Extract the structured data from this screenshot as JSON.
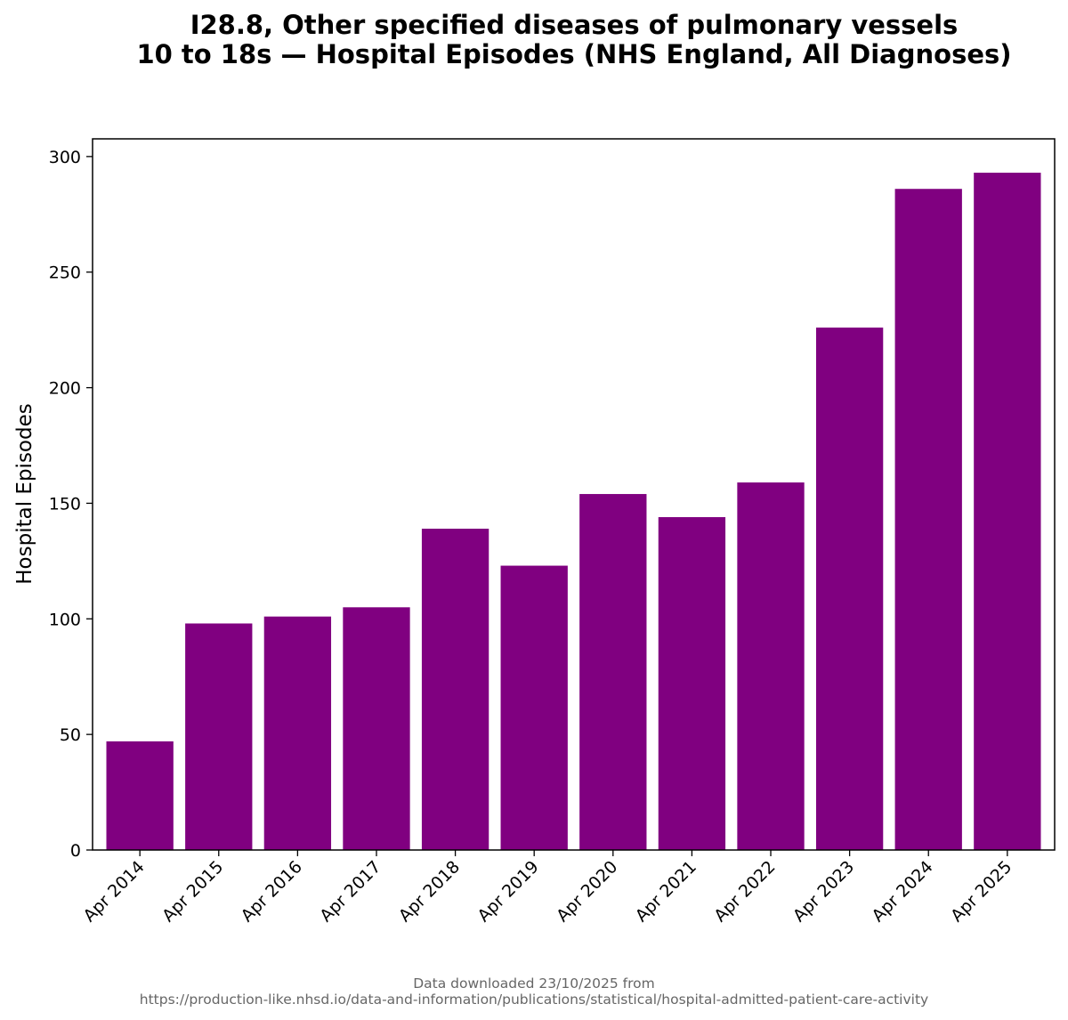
{
  "chart_data": {
    "type": "bar",
    "title_line1": "I28.8, Other specified diseases of pulmonary vessels",
    "title_line2": "10 to 18s — Hospital Episodes (NHS England, All Diagnoses)",
    "xlabel": "",
    "ylabel": "Hospital Episodes",
    "categories": [
      "Apr 2014",
      "Apr 2015",
      "Apr 2016",
      "Apr 2017",
      "Apr 2018",
      "Apr 2019",
      "Apr 2020",
      "Apr 2021",
      "Apr 2022",
      "Apr 2023",
      "Apr 2024",
      "Apr 2025"
    ],
    "values": [
      47,
      98,
      101,
      105,
      139,
      123,
      154,
      144,
      159,
      226,
      286,
      293
    ],
    "ylim": [
      0,
      307.65
    ],
    "yticks": [
      0,
      50,
      100,
      150,
      200,
      250,
      300
    ],
    "grid": false,
    "bar_color": "#800080"
  },
  "footer": {
    "line1": "Data downloaded 23/10/2025 from",
    "line2": "https://production-like.nhsd.io/data-and-information/publications/statistical/hospital-admitted-patient-care-activity"
  }
}
